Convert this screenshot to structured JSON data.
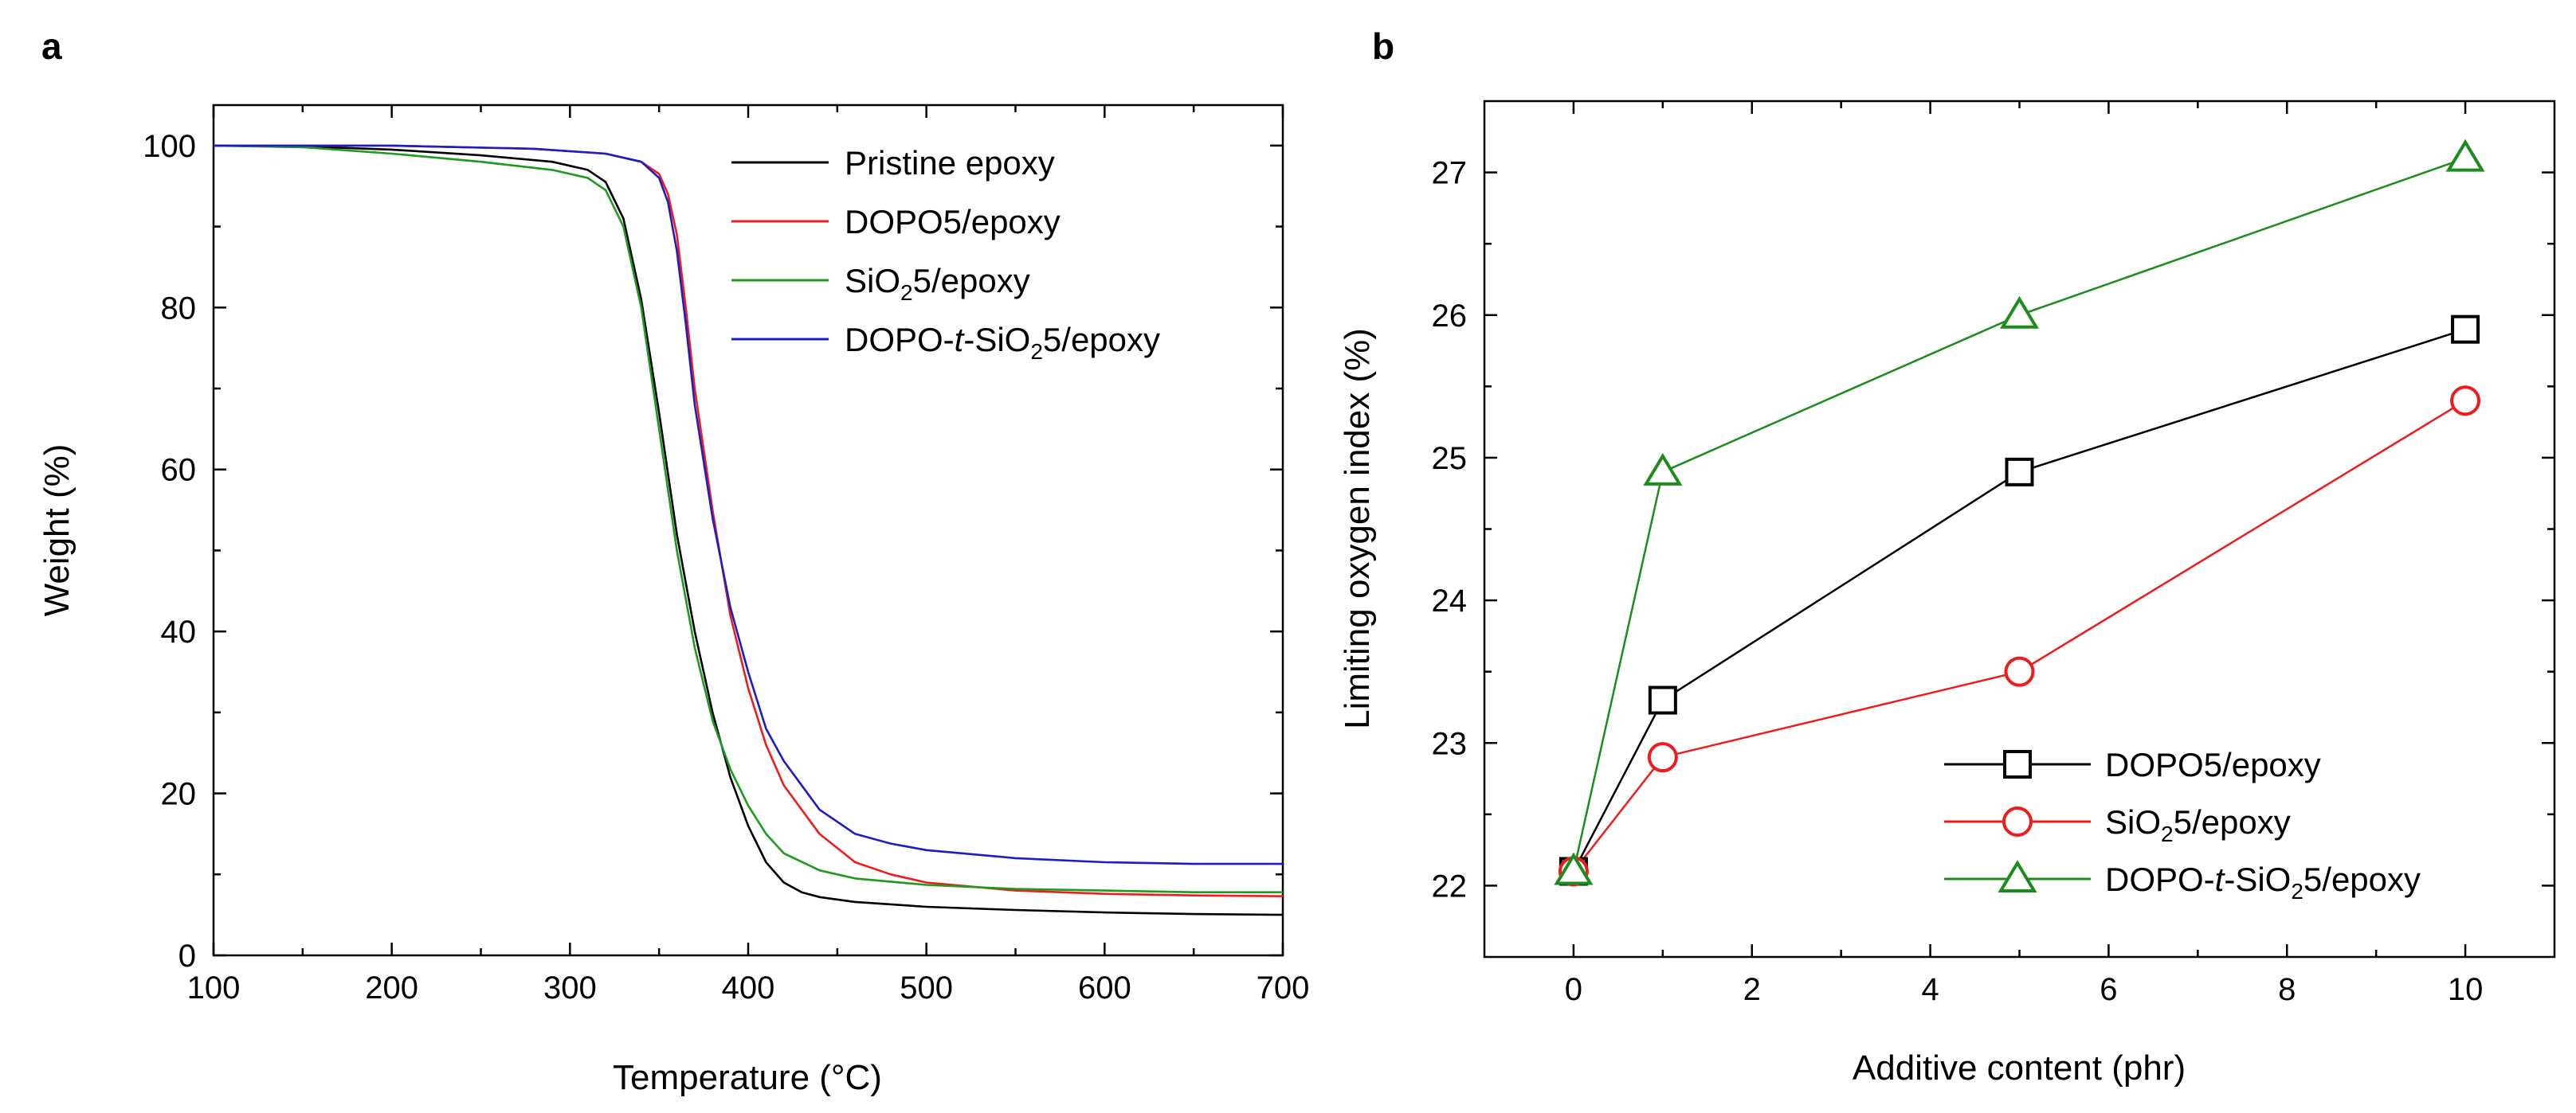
{
  "panels": {
    "a_label": "a",
    "b_label": "b"
  },
  "chart_data": [
    {
      "type": "line",
      "panel": "a",
      "title": "",
      "xlabel": "Temperature (°C)",
      "ylabel": "Weight (%)",
      "xlim": [
        100,
        700
      ],
      "ylim": [
        0,
        105
      ],
      "xticks": [
        100,
        200,
        300,
        400,
        500,
        600,
        700
      ],
      "yticks": [
        0,
        20,
        40,
        60,
        80,
        100
      ],
      "legend_position": "top-right",
      "series": [
        {
          "name": "Pristine epoxy",
          "legend_main": "Pristine epoxy",
          "color": "#000000",
          "x": [
            100,
            150,
            200,
            250,
            290,
            310,
            320,
            330,
            340,
            350,
            360,
            370,
            380,
            390,
            400,
            410,
            420,
            430,
            440,
            460,
            500,
            550,
            600,
            650,
            700
          ],
          "y": [
            100,
            99.9,
            99.5,
            98.8,
            98,
            97,
            95.5,
            91,
            81,
            67,
            52,
            40,
            30,
            22,
            16,
            11.5,
            9,
            7.8,
            7.2,
            6.6,
            6,
            5.6,
            5.3,
            5.1,
            5.0
          ]
        },
        {
          "name": "DOPO5/epoxy",
          "legend_main": "DOPO5/epoxy",
          "color": "#ee1c1c",
          "x": [
            100,
            200,
            280,
            320,
            340,
            350,
            355,
            360,
            365,
            370,
            380,
            390,
            400,
            410,
            420,
            440,
            460,
            480,
            500,
            550,
            600,
            650,
            700
          ],
          "y": [
            100,
            100,
            99.6,
            99,
            98,
            96.5,
            94,
            89,
            80,
            70,
            55,
            42,
            33,
            26,
            21,
            15,
            11.5,
            10,
            9,
            8,
            7.6,
            7.4,
            7.3
          ]
        },
        {
          "name": "SiO2 5/epoxy",
          "legend_main": "SiO",
          "legend_sub": "2",
          "legend_tail": "5/epoxy",
          "color": "#1c9b1c",
          "x": [
            100,
            150,
            200,
            250,
            290,
            310,
            320,
            330,
            340,
            350,
            360,
            370,
            380,
            390,
            400,
            410,
            420,
            440,
            460,
            500,
            550,
            600,
            650,
            700
          ],
          "y": [
            100,
            99.8,
            99,
            98,
            97,
            96,
            94.5,
            90,
            80,
            65,
            50,
            38,
            29,
            23,
            18.5,
            15,
            12.6,
            10.5,
            9.5,
            8.7,
            8.2,
            8,
            7.8,
            7.8
          ]
        },
        {
          "name": "DOPO-t-SiO2 5/epoxy",
          "legend_main": "DOPO-",
          "legend_italic": "t",
          "legend_mid": "-SiO",
          "legend_sub": "2",
          "legend_tail": "5/epoxy",
          "color": "#1c1cc8",
          "x": [
            100,
            200,
            280,
            320,
            340,
            350,
            355,
            360,
            365,
            370,
            380,
            390,
            400,
            410,
            420,
            440,
            460,
            480,
            500,
            550,
            600,
            650,
            700
          ],
          "y": [
            100,
            100,
            99.6,
            99,
            98,
            96,
            93,
            87,
            78,
            68,
            54,
            43,
            35,
            28,
            24,
            18,
            15,
            13.8,
            13,
            12,
            11.5,
            11.3,
            11.3
          ]
        }
      ]
    },
    {
      "type": "line",
      "panel": "b",
      "title": "",
      "xlabel": "Additive content (phr)",
      "ylabel": "Limiting oxygen index (%)",
      "xlim": [
        -1,
        11
      ],
      "ylim": [
        21.5,
        27.5
      ],
      "xticks": [
        0,
        2,
        4,
        6,
        8,
        10
      ],
      "yticks": [
        22,
        23,
        24,
        25,
        26,
        27
      ],
      "legend_position": "bottom-right",
      "series": [
        {
          "name": "DOPO5/epoxy",
          "legend_main": "DOPO5/epoxy",
          "color": "#000000",
          "marker": "square",
          "x": [
            0,
            1,
            5,
            10
          ],
          "y": [
            22.1,
            23.3,
            24.9,
            25.9
          ]
        },
        {
          "name": "SiO2 5/epoxy",
          "legend_main": "SiO",
          "legend_sub": "2",
          "legend_tail": "5/epoxy",
          "color": "#ee1c1c",
          "marker": "circle",
          "x": [
            0,
            1,
            5,
            10
          ],
          "y": [
            22.1,
            22.9,
            23.5,
            25.4
          ]
        },
        {
          "name": "DOPO-t-SiO2 5/epoxy",
          "legend_main": "DOPO-",
          "legend_italic": "t",
          "legend_mid": "-SiO",
          "legend_sub": "2",
          "legend_tail": "5/epoxy",
          "color": "#1c8c1c",
          "marker": "triangle",
          "x": [
            0,
            1,
            5,
            10
          ],
          "y": [
            22.1,
            24.9,
            26.0,
            27.1
          ]
        }
      ]
    }
  ]
}
